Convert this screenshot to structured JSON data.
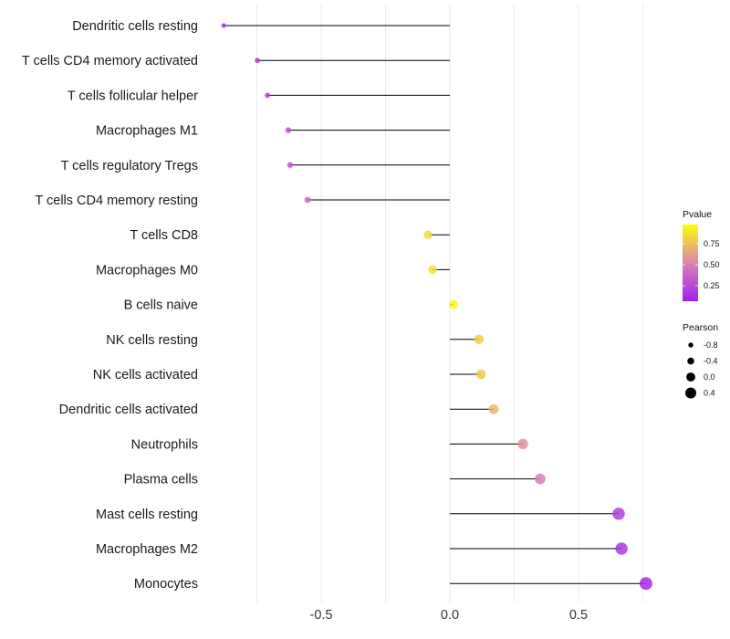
{
  "chart_data": {
    "type": "lollipop",
    "title": "",
    "xlabel": "",
    "ylabel": "",
    "xlim": [
      -0.95,
      0.85
    ],
    "x_ticks": [
      -0.5,
      0.0,
      0.5
    ],
    "x_tick_labels": [
      "-0.5",
      "0.0",
      "0.5"
    ],
    "grid": true,
    "categories": [
      "Dendritic cells resting",
      "T cells CD4 memory activated",
      "T cells follicular helper",
      "Macrophages M1",
      "T cells regulatory  Tregs",
      "T cells CD4 memory resting",
      "T cells CD8",
      "Macrophages M0",
      "B cells naive",
      "NK cells resting",
      "NK cells activated",
      "Dendritic cells activated",
      "Neutrophils",
      "Plasma cells",
      "Mast cells resting",
      "Macrophages M2",
      "Monocytes"
    ],
    "pearson": [
      -0.879,
      -0.748,
      -0.709,
      -0.628,
      -0.621,
      -0.553,
      -0.085,
      -0.067,
      0.014,
      0.113,
      0.121,
      0.17,
      0.284,
      0.351,
      0.656,
      0.667,
      0.762
    ],
    "pvalue": [
      0.02,
      0.1,
      0.12,
      0.25,
      0.28,
      0.35,
      0.85,
      0.87,
      0.97,
      0.8,
      0.78,
      0.7,
      0.55,
      0.48,
      0.15,
      0.12,
      0.05
    ],
    "legend": {
      "color": {
        "title": "Pvalue",
        "ticks": [
          0.25,
          0.5,
          0.75
        ],
        "tick_labels": [
          "0.25",
          "0.50",
          "0.75"
        ],
        "range": [
          0.0,
          1.0
        ],
        "low_color": "#a020f0",
        "mid_color": "#dc82b2",
        "high_color": "#ffff00"
      },
      "size": {
        "title": "Pearson",
        "values": [
          -0.8,
          -0.4,
          0.0,
          0.4
        ],
        "labels": [
          "-0.8",
          "-0.4",
          "0.0",
          "0.4"
        ]
      },
      "placement": "right"
    }
  }
}
